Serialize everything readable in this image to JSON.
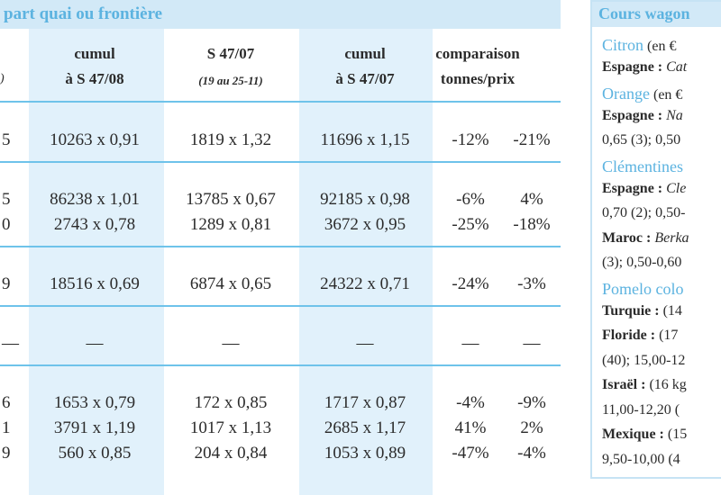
{
  "header": {
    "title": "part quai ou frontière",
    "col0": ")",
    "columns": [
      {
        "line1": "cumul",
        "line2": "à S 47/08"
      },
      {
        "line1": "S 47/07",
        "line2": "(19 au 25-11)"
      },
      {
        "line1": "cumul",
        "line2": "à S 47/07"
      },
      {
        "line1": "comparaison",
        "line2": "tonnes/prix"
      }
    ]
  },
  "table": {
    "groups": [
      [
        [
          "5",
          "10263 x 0,91",
          "1819 x 1,32",
          "11696 x 1,15",
          "-12%",
          "-21%"
        ]
      ],
      [
        [
          "5",
          "86238 x 1,01",
          "13785 x 0,67",
          "92185 x 0,98",
          "-6%",
          "4%"
        ],
        [
          "0",
          "2743 x 0,78",
          "1289 x 0,81",
          "3672 x 0,95",
          "-25%",
          "-18%"
        ]
      ],
      [
        [
          "9",
          "18516 x 0,69",
          "6874 x 0,65",
          "24322 x 0,71",
          "-24%",
          "-3%"
        ]
      ],
      [
        [
          "—",
          "—",
          "—",
          "—",
          "—",
          "—"
        ]
      ],
      [
        [
          "6",
          "1653 x 0,79",
          "172 x 0,85",
          "1717 x 0,87",
          "-4%",
          "-9%"
        ],
        [
          "1",
          "3791 x 1,19",
          "1017 x 1,13",
          "2685 x 1,17",
          "41%",
          "2%"
        ],
        [
          "9",
          "560 x 0,85",
          "204 x 0,84",
          "1053 x 0,89",
          "-47%",
          "-4%"
        ]
      ]
    ]
  },
  "sidebar": {
    "title": "Cours wagon",
    "items": [
      {
        "heading": "Citron",
        "unit": "(en €"
      },
      {
        "label": "Espagne :",
        "variety": "Cat"
      },
      {
        "heading": "Orange",
        "unit": "(en €"
      },
      {
        "label": "Espagne :",
        "variety": "Na"
      },
      {
        "text": "0,65 (3); 0,50"
      },
      {
        "heading": "Clémentines"
      },
      {
        "label": "Espagne :",
        "variety": "Cle"
      },
      {
        "text": "0,70 (2); 0,50-"
      },
      {
        "label": "Maroc :",
        "variety": "Berka"
      },
      {
        "text": "(3); 0,50-0,60"
      },
      {
        "heading": "Pomelo colo"
      },
      {
        "label": "Turquie :",
        "text": "(14"
      },
      {
        "label": "Floride :",
        "text": "(17"
      },
      {
        "text": "(40); 15,00-12"
      },
      {
        "label": "Israël :",
        "text": "(16 kg"
      },
      {
        "text": "11,00-12,20 ("
      },
      {
        "label": "Mexique :",
        "text": "(15"
      },
      {
        "text": "9,50-10,00 (4"
      }
    ]
  }
}
